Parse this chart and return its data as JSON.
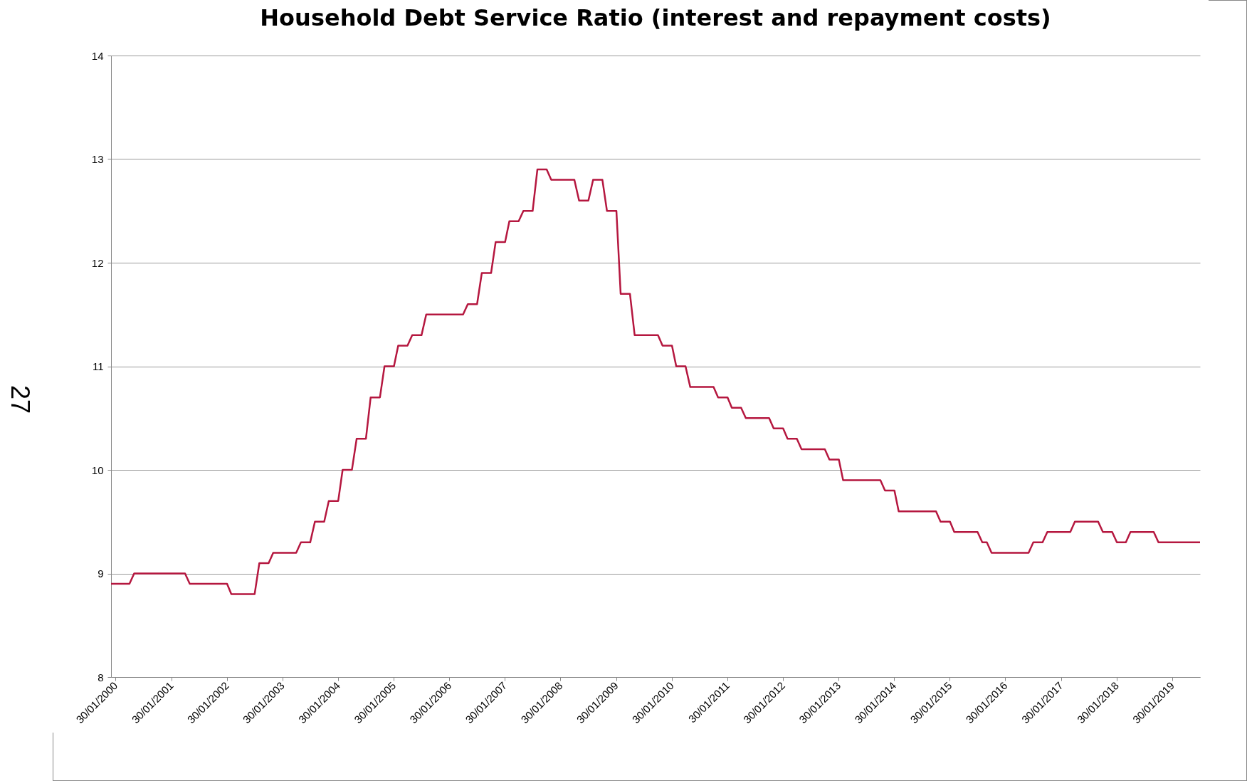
{
  "chart_data": {
    "type": "line",
    "title": "Household Debt Service Ratio (interest and repayment costs)",
    "annotations": [
      "27"
    ],
    "x": [
      "2000-01",
      "2000-05",
      "2000-06",
      "2001-05",
      "2001-06",
      "2002-02",
      "2002-03",
      "2002-08",
      "2002-09",
      "2002-11",
      "2002-12",
      "2003-05",
      "2003-06",
      "2003-08",
      "2003-09",
      "2003-11",
      "2003-12",
      "2004-02",
      "2004-03",
      "2004-05",
      "2004-06",
      "2004-08",
      "2004-09",
      "2004-11",
      "2004-12",
      "2005-02",
      "2005-03",
      "2005-05",
      "2005-06",
      "2005-08",
      "2005-09",
      "2006-05",
      "2006-06",
      "2006-08",
      "2006-09",
      "2006-11",
      "2006-12",
      "2007-02",
      "2007-03",
      "2007-05",
      "2007-06",
      "2007-08",
      "2007-09",
      "2007-11",
      "2007-12",
      "2008-05",
      "2008-06",
      "2008-08",
      "2008-09",
      "2008-11",
      "2008-12",
      "2009-02",
      "2009-03",
      "2009-05",
      "2009-06",
      "2009-11",
      "2009-12",
      "2010-02",
      "2010-03",
      "2010-05",
      "2010-06",
      "2010-11",
      "2010-12",
      "2011-02",
      "2011-03",
      "2011-05",
      "2011-06",
      "2011-11",
      "2011-12",
      "2012-02",
      "2012-03",
      "2012-05",
      "2012-06",
      "2012-11",
      "2012-12",
      "2013-02",
      "2013-03",
      "2013-11",
      "2013-12",
      "2014-02",
      "2014-03",
      "2014-11",
      "2014-12",
      "2015-02",
      "2015-03",
      "2015-08",
      "2015-09",
      "2015-10",
      "2015-11",
      "2016-07",
      "2016-08",
      "2016-10",
      "2016-11",
      "2017-04",
      "2017-05",
      "2017-10",
      "2017-11",
      "2018-01",
      "2018-02",
      "2018-04",
      "2018-05",
      "2018-10",
      "2018-11",
      "2019-08"
    ],
    "series": [
      {
        "color": "#b5173f",
        "values": [
          8.9,
          8.9,
          9.0,
          9.0,
          8.9,
          8.9,
          8.8,
          8.8,
          9.1,
          9.1,
          9.2,
          9.2,
          9.3,
          9.3,
          9.5,
          9.5,
          9.7,
          9.7,
          10.0,
          10.0,
          10.3,
          10.3,
          10.7,
          10.7,
          11.0,
          11.0,
          11.2,
          11.2,
          11.3,
          11.3,
          11.5,
          11.5,
          11.6,
          11.6,
          11.9,
          11.9,
          12.2,
          12.2,
          12.4,
          12.4,
          12.5,
          12.5,
          12.9,
          12.9,
          12.8,
          12.8,
          12.6,
          12.6,
          12.8,
          12.8,
          12.5,
          12.5,
          11.7,
          11.7,
          11.3,
          11.3,
          11.2,
          11.2,
          11.0,
          11.0,
          10.8,
          10.8,
          10.7,
          10.7,
          10.6,
          10.6,
          10.5,
          10.5,
          10.4,
          10.4,
          10.3,
          10.3,
          10.2,
          10.2,
          10.1,
          10.1,
          9.9,
          9.9,
          9.8,
          9.8,
          9.6,
          9.6,
          9.5,
          9.5,
          9.4,
          9.4,
          9.3,
          9.3,
          9.2,
          9.2,
          9.3,
          9.3,
          9.4,
          9.4,
          9.5,
          9.5,
          9.4,
          9.4,
          9.3,
          9.3,
          9.4,
          9.4,
          9.3,
          9.3
        ]
      }
    ],
    "xlim": [
      "2000-01",
      "2019-08"
    ],
    "xticks": [
      {
        "value": "2000-01-30",
        "label": "30/01/2000"
      },
      {
        "value": "2001-01-30",
        "label": "30/01/2001"
      },
      {
        "value": "2002-01-30",
        "label": "30/01/2002"
      },
      {
        "value": "2003-01-30",
        "label": "30/01/2003"
      },
      {
        "value": "2004-01-30",
        "label": "30/01/2004"
      },
      {
        "value": "2005-01-30",
        "label": "30/01/2005"
      },
      {
        "value": "2006-01-30",
        "label": "30/01/2006"
      },
      {
        "value": "2007-01-30",
        "label": "30/01/2007"
      },
      {
        "value": "2008-01-30",
        "label": "30/01/2008"
      },
      {
        "value": "2009-01-30",
        "label": "30/01/2009"
      },
      {
        "value": "2010-01-30",
        "label": "30/01/2010"
      },
      {
        "value": "2011-01-30",
        "label": "30/01/2011"
      },
      {
        "value": "2012-01-30",
        "label": "30/01/2012"
      },
      {
        "value": "2013-01-30",
        "label": "30/01/2013"
      },
      {
        "value": "2014-01-30",
        "label": "30/01/2014"
      },
      {
        "value": "2015-01-30",
        "label": "30/01/2015"
      },
      {
        "value": "2016-01-30",
        "label": "30/01/2016"
      },
      {
        "value": "2017-01-30",
        "label": "30/01/2017"
      },
      {
        "value": "2018-01-30",
        "label": "30/01/2018"
      },
      {
        "value": "2019-01-30",
        "label": "30/01/2019"
      }
    ],
    "ylim": [
      8,
      14
    ],
    "yticks": [
      8,
      9,
      10,
      11,
      12,
      13,
      14
    ],
    "grid": "y",
    "marker": "none",
    "line_style": "solid"
  }
}
